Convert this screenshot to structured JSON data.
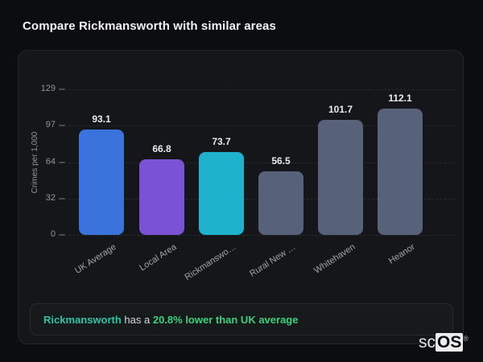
{
  "page": {
    "title": "Compare Rickmansworth with similar areas"
  },
  "chart_data": {
    "type": "bar",
    "categories": [
      "UK Average",
      "Local Area",
      "Rickmanswo…",
      "Rural New …",
      "Whitehaven",
      "Heanor"
    ],
    "values": [
      93.1,
      66.8,
      73.7,
      56.5,
      101.7,
      112.1
    ],
    "bar_colors": [
      "#3a73dc",
      "#7a52d4",
      "#1fb2cd",
      "#57627a",
      "#57627a",
      "#57627a"
    ],
    "title": "",
    "xlabel": "",
    "ylabel": "Crimes per 1,000",
    "yticks": [
      0,
      32,
      64,
      97,
      129
    ],
    "ylim": [
      0,
      129
    ],
    "grid": "horizontal-dashed",
    "legend": "none"
  },
  "note": {
    "subject": "Rickmansworth",
    "middle": " has a ",
    "highlight": "20.8% lower than UK average"
  },
  "logo": {
    "prefix": "sc",
    "suffix": "OS",
    "reg": "®"
  }
}
